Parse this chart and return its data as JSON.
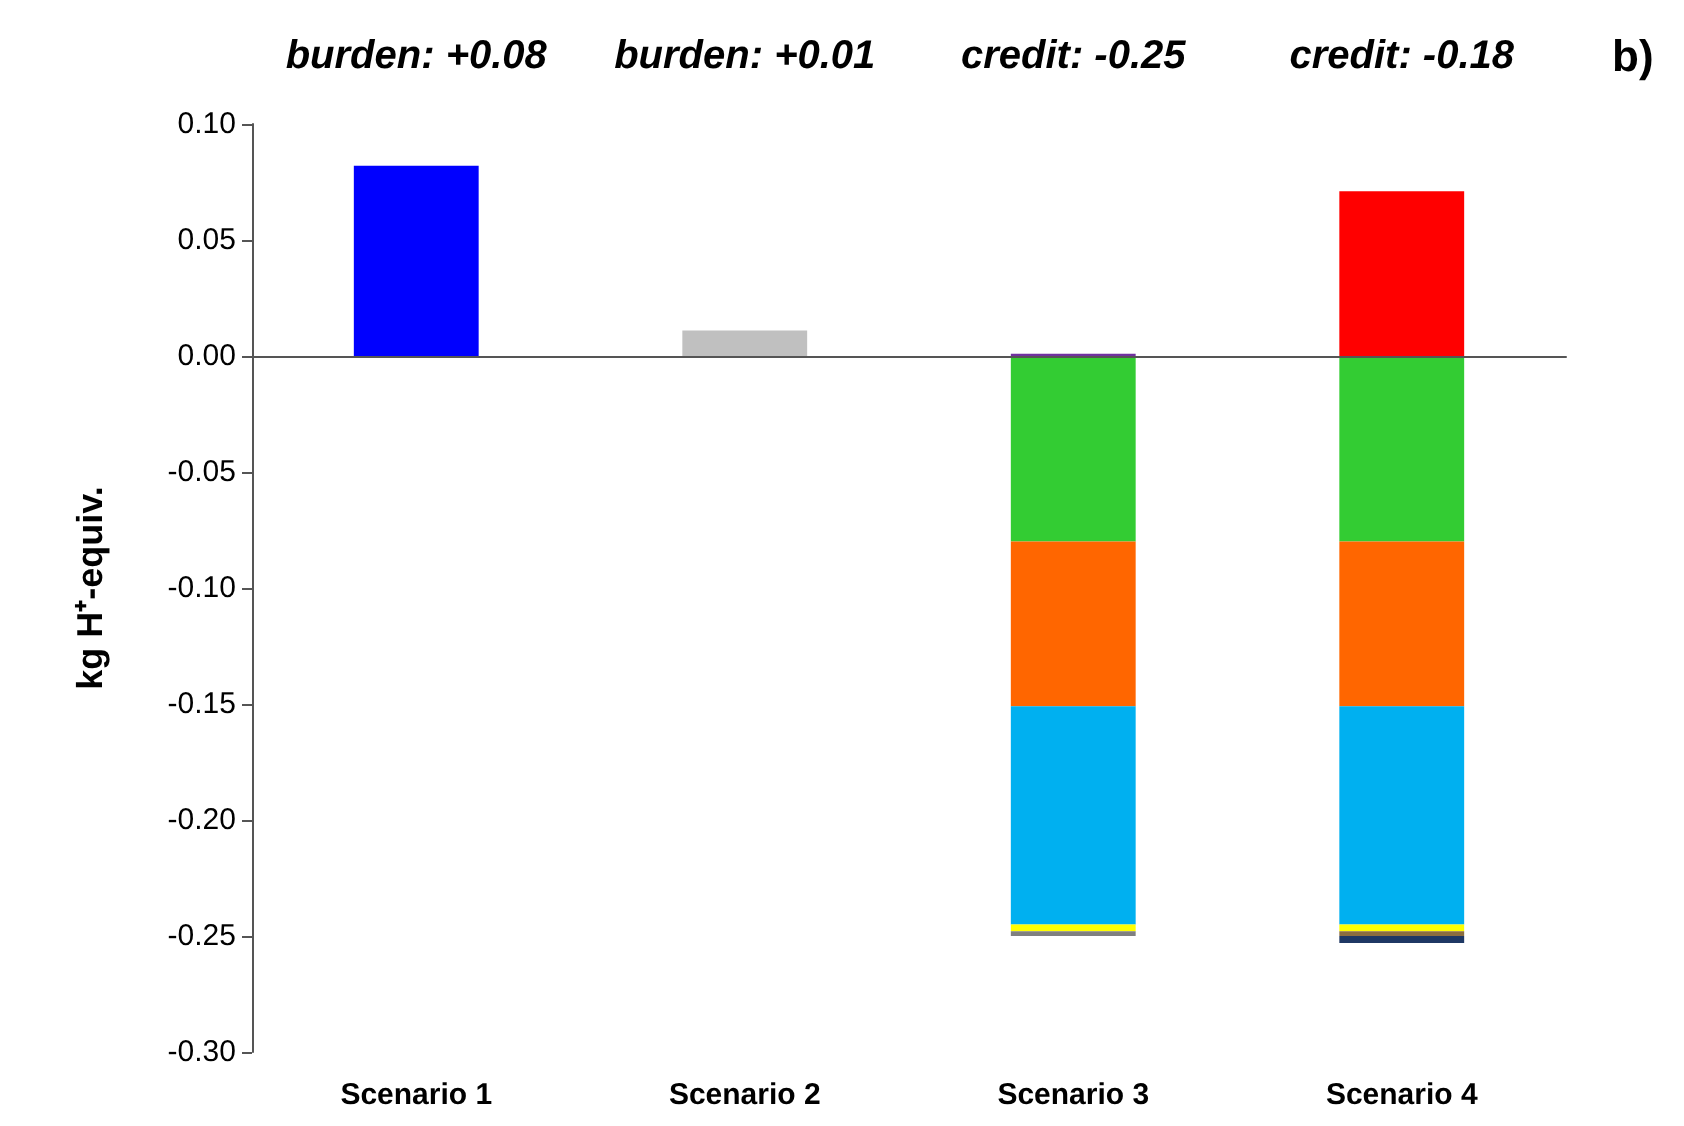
{
  "chart_data": {
    "type": "bar",
    "stacked": true,
    "ylabel": "kg H⁺-equiv.",
    "categories": [
      "Scenario 1",
      "Scenario 2",
      "Scenario 3",
      "Scenario 4"
    ],
    "series": [
      {
        "color": "#0000ff",
        "values": [
          0.082,
          null,
          null,
          null
        ]
      },
      {
        "color": "#c0c0c0",
        "values": [
          null,
          0.011,
          null,
          null
        ]
      },
      {
        "color": "#7030a0",
        "values": [
          null,
          null,
          0.001,
          null
        ]
      },
      {
        "color": "#ff0000",
        "values": [
          null,
          null,
          null,
          0.071
        ]
      },
      {
        "color": "#33cc33",
        "values": [
          null,
          null,
          -0.08,
          -0.08
        ]
      },
      {
        "color": "#ff6600",
        "values": [
          null,
          null,
          -0.071,
          -0.071
        ]
      },
      {
        "color": "#00b0f0",
        "values": [
          null,
          null,
          -0.094,
          -0.094
        ]
      },
      {
        "color": "#ffff00",
        "values": [
          null,
          null,
          -0.003,
          -0.003
        ]
      },
      {
        "color": "#808080",
        "values": [
          null,
          null,
          -0.002,
          null
        ]
      },
      {
        "color": "#8c6d3f",
        "values": [
          null,
          null,
          null,
          -0.002
        ]
      },
      {
        "color": "#1f3864",
        "values": [
          null,
          null,
          null,
          -0.003
        ]
      }
    ],
    "ylim": [
      -0.3,
      0.1
    ],
    "yticks": [
      {
        "value": -0.3,
        "label": "-0.30"
      },
      -0.25,
      {
        "value": -0.2,
        "label": "-0.20"
      },
      -0.15,
      {
        "value": -0.1,
        "label": "-0.10"
      },
      -0.05,
      {
        "value": 0,
        "label": "0.00"
      },
      0.05,
      {
        "value": 0.1,
        "label": "0.10"
      }
    ],
    "annotations": [
      "burden: +0.08",
      "burden: +0.01",
      "credit: -0.25",
      "credit: -0.18",
      "b)"
    ]
  }
}
